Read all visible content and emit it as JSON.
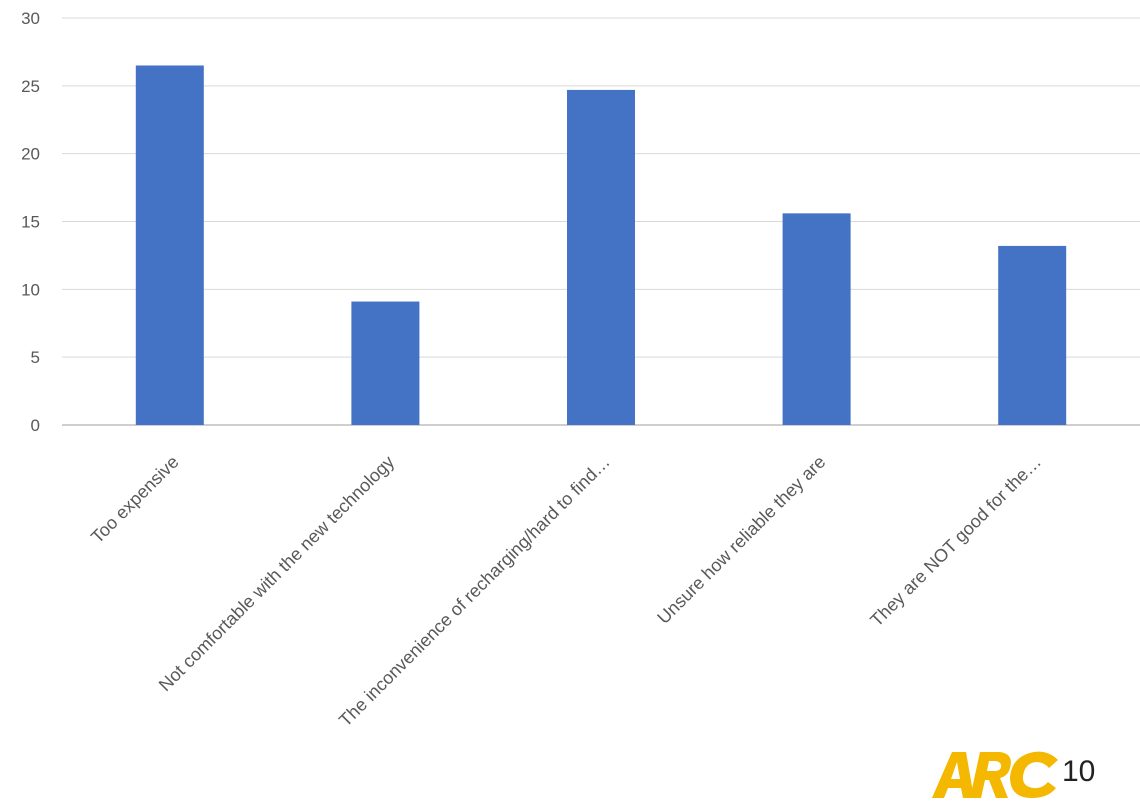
{
  "chart_data": {
    "type": "bar",
    "categories": [
      "Too expensive",
      "Not comfortable with the new technology",
      "The inconvenience of recharging/hard to find…",
      "Unsure how reliable they are",
      "They are NOT good for the…"
    ],
    "values": [
      26.5,
      9.1,
      24.7,
      15.6,
      13.2
    ],
    "ylim": [
      0,
      30
    ],
    "yticks": [
      0,
      5,
      10,
      15,
      20,
      25,
      30
    ],
    "grid": true,
    "bar_color": "#4472C4"
  },
  "logo": {
    "text": "ARC",
    "color": "#F5B800"
  },
  "page_number": "10"
}
